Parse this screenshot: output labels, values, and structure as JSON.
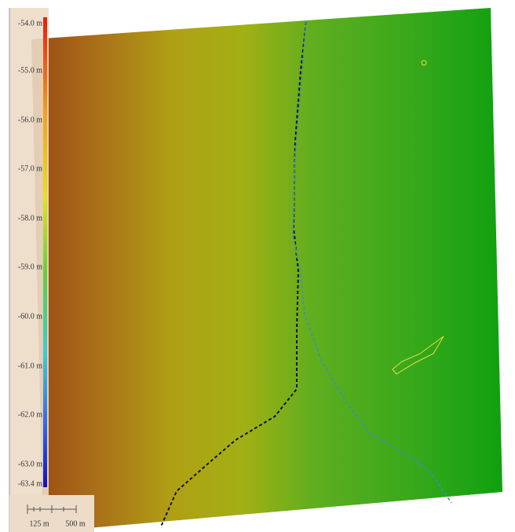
{
  "legend": {
    "labels": [
      "-54.0 m",
      "-55.0 m",
      "-56.0 m",
      "-57.0 m",
      "-58.0 m",
      "-59.0 m",
      "-60.0 m",
      "-61.0 m",
      "-62.0 m",
      "-63.0 m",
      "-63.4 m"
    ]
  },
  "scale_bar": {
    "labels": [
      "125 m",
      "500 m"
    ]
  }
}
